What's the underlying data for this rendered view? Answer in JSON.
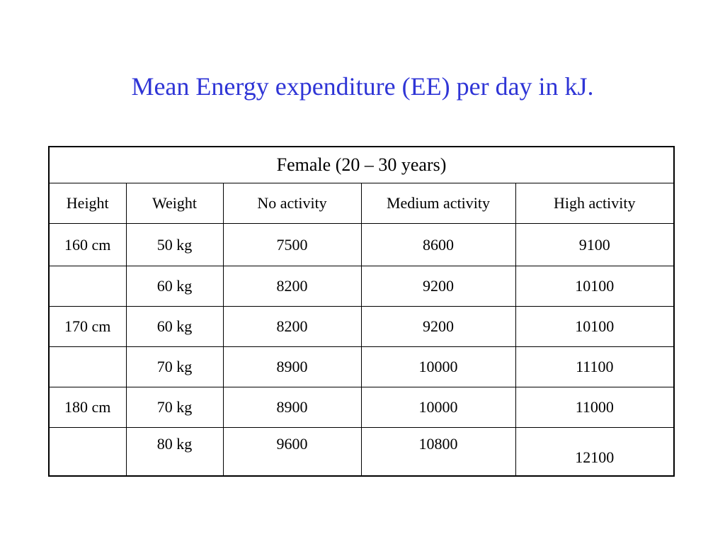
{
  "slide": {
    "title": "Mean Energy expenditure (EE) per day in kJ."
  },
  "table": {
    "caption": "Female (20 – 30 years)",
    "headers": [
      "Height",
      "Weight",
      "No activity",
      "Medium activity",
      "High activity"
    ],
    "rows": [
      {
        "height": "160 cm",
        "weight": "50 kg",
        "no_activity": "7500",
        "medium_activity": "8600",
        "high_activity": "9100"
      },
      {
        "height": "",
        "weight": "60 kg",
        "no_activity": "8200",
        "medium_activity": "9200",
        "high_activity": "10100"
      },
      {
        "height": "170 cm",
        "weight": "60 kg",
        "no_activity": "8200",
        "medium_activity": "9200",
        "high_activity": "10100"
      },
      {
        "height": "",
        "weight": "70 kg",
        "no_activity": "8900",
        "medium_activity": "10000",
        "high_activity": "11100"
      },
      {
        "height": "180 cm",
        "weight": "70 kg",
        "no_activity": "8900",
        "medium_activity": "10000",
        "high_activity": "11000"
      },
      {
        "height": "",
        "weight": "80 kg",
        "no_activity": "9600",
        "medium_activity": "10800",
        "high_activity": "12100"
      }
    ]
  }
}
